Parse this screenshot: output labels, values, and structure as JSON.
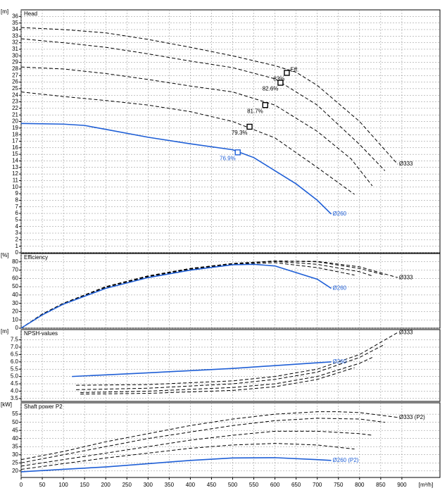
{
  "chart_data": [
    {
      "type": "line",
      "title": "Head",
      "y_unit": "[m]",
      "xlim": [
        0,
        990
      ],
      "xticks": [
        0,
        50,
        100,
        150,
        200,
        250,
        300,
        350,
        400,
        450,
        500,
        550,
        600,
        650,
        700,
        750,
        800,
        850,
        900
      ],
      "ylim": [
        0,
        37
      ],
      "yticks": [
        0,
        1,
        2,
        3,
        4,
        5,
        6,
        7,
        8,
        9,
        10,
        11,
        12,
        13,
        14,
        15,
        16,
        17,
        18,
        19,
        20,
        21,
        22,
        23,
        24,
        25,
        26,
        27,
        28,
        29,
        30,
        31,
        32,
        33,
        34,
        35,
        36
      ],
      "grid": true,
      "series": [
        {
          "label": "Ø333",
          "color": "#000000",
          "dashed": true,
          "x": [
            0,
            100,
            200,
            300,
            400,
            500,
            600,
            650,
            700,
            800,
            890
          ],
          "values": [
            34.3,
            34,
            33.5,
            32.5,
            31.3,
            30,
            28.5,
            27.5,
            25.5,
            20,
            13.5
          ]
        },
        {
          "color": "#000000",
          "dashed": true,
          "x": [
            0,
            100,
            200,
            300,
            400,
            500,
            600,
            700,
            800,
            860
          ],
          "values": [
            32.6,
            32,
            31.3,
            30.3,
            29.2,
            28.2,
            26.5,
            22.5,
            16.5,
            12.5
          ]
        },
        {
          "color": "#000000",
          "dashed": true,
          "x": [
            0,
            100,
            200,
            300,
            400,
            500,
            600,
            700,
            780,
            830
          ],
          "values": [
            28.3,
            28,
            27.3,
            26.4,
            25.4,
            24.5,
            22.5,
            18.5,
            14.3,
            10.2
          ]
        },
        {
          "color": "#000000",
          "dashed": true,
          "x": [
            0,
            100,
            200,
            300,
            400,
            500,
            600,
            700,
            788
          ],
          "values": [
            24.5,
            23.8,
            23.2,
            22.5,
            21.5,
            20,
            17.5,
            13,
            8.9
          ]
        },
        {
          "label": "Ø260",
          "color": "#1f5fd6",
          "dashed": false,
          "x": [
            0,
            100,
            150,
            200,
            300,
            400,
            500,
            550,
            600,
            650,
            700,
            733
          ],
          "values": [
            19.7,
            19.6,
            19.4,
            18.8,
            17.6,
            16.6,
            15.7,
            14.5,
            12.5,
            10.5,
            8,
            5.9
          ]
        }
      ],
      "points": [
        {
          "x": 628,
          "y": 27.4,
          "label": "83%",
          "note": "Eff.",
          "color": "#000000"
        },
        {
          "x": 613,
          "y": 25.9,
          "label": "82.6%",
          "color": "#000000"
        },
        {
          "x": 577,
          "y": 22.5,
          "label": "81.7%",
          "color": "#000000"
        },
        {
          "x": 540,
          "y": 19.2,
          "label": "79.3%",
          "color": "#000000"
        },
        {
          "x": 512,
          "y": 15.3,
          "label": "76.9%",
          "color": "#1f5fd6"
        }
      ]
    },
    {
      "type": "line",
      "title": "Efficiency",
      "y_unit": "[%]",
      "xlim": [
        0,
        990
      ],
      "xticks": [
        0,
        50,
        100,
        150,
        200,
        250,
        300,
        350,
        400,
        450,
        500,
        550,
        600,
        650,
        700,
        750,
        800,
        850,
        900
      ],
      "ylim": [
        0,
        90
      ],
      "yticks": [
        0,
        10,
        20,
        30,
        40,
        50,
        60,
        70,
        80
      ],
      "grid": true,
      "series": [
        {
          "label": "Ø333",
          "color": "#000000",
          "dashed": true,
          "x": [
            0,
            50,
            100,
            200,
            300,
            400,
            500,
            600,
            700,
            800,
            890
          ],
          "values": [
            0,
            17,
            30,
            50,
            63,
            72,
            78,
            81,
            80.5,
            74,
            61
          ]
        },
        {
          "color": "#000000",
          "dashed": true,
          "x": [
            0,
            50,
            100,
            200,
            300,
            400,
            500,
            600,
            700,
            800,
            860
          ],
          "values": [
            0,
            17,
            30,
            50,
            63,
            72,
            78,
            81,
            80,
            72,
            64
          ]
        },
        {
          "color": "#000000",
          "dashed": true,
          "x": [
            0,
            50,
            100,
            200,
            300,
            400,
            500,
            600,
            700,
            800,
            830
          ],
          "values": [
            0,
            17,
            30,
            50,
            62.5,
            71.5,
            77.5,
            80.5,
            77,
            68,
            63
          ]
        },
        {
          "color": "#000000",
          "dashed": true,
          "x": [
            0,
            50,
            100,
            200,
            300,
            400,
            500,
            600,
            700,
            788
          ],
          "values": [
            0,
            16.5,
            29.5,
            49,
            62,
            71,
            77,
            79,
            73,
            64
          ]
        },
        {
          "label": "Ø260",
          "color": "#1f5fd6",
          "dashed": false,
          "x": [
            0,
            50,
            100,
            200,
            300,
            400,
            500,
            550,
            600,
            700,
            733
          ],
          "values": [
            0,
            16,
            29,
            48,
            61,
            70,
            76.5,
            77,
            75,
            59,
            48
          ]
        }
      ]
    },
    {
      "type": "line",
      "title": "NPSH-values",
      "y_unit": "[m]",
      "xlim": [
        0,
        990
      ],
      "xticks": [
        0,
        50,
        100,
        150,
        200,
        250,
        300,
        350,
        400,
        450,
        500,
        550,
        600,
        650,
        700,
        750,
        800,
        850,
        900
      ],
      "ylim": [
        3.3,
        8.2
      ],
      "yticks": [
        3.5,
        {
          "value": 4,
          "label": "4.0"
        },
        4.5,
        {
          "value": 5,
          "label": "5.0"
        },
        5.5,
        {
          "value": 6,
          "label": "6.0"
        },
        6.5,
        {
          "value": 7,
          "label": "7.0"
        },
        7.5
      ],
      "grid": true,
      "series": [
        {
          "label": "Ø333",
          "color": "#000000",
          "dashed": true,
          "x": [
            130,
            300,
            500,
            600,
            700,
            800,
            890
          ],
          "values": [
            4.4,
            4.45,
            4.7,
            5,
            5.5,
            6.5,
            8
          ]
        },
        {
          "color": "#000000",
          "dashed": true,
          "x": [
            130,
            300,
            500,
            600,
            700,
            800,
            860
          ],
          "values": [
            4.1,
            4.2,
            4.5,
            4.8,
            5.3,
            6.3,
            7.2
          ]
        },
        {
          "color": "#000000",
          "dashed": true,
          "x": [
            140,
            300,
            500,
            600,
            700,
            800,
            830
          ],
          "values": [
            3.9,
            4,
            4.25,
            4.5,
            5,
            5.9,
            6.3
          ]
        },
        {
          "color": "#000000",
          "dashed": true,
          "x": [
            140,
            300,
            500,
            600,
            700,
            788
          ],
          "values": [
            3.8,
            3.85,
            4.05,
            4.3,
            4.8,
            5.6
          ]
        },
        {
          "label": "Ø260",
          "color": "#1f5fd6",
          "dashed": false,
          "x": [
            120,
            300,
            500,
            733
          ],
          "values": [
            5,
            5.25,
            5.55,
            6
          ]
        }
      ]
    },
    {
      "type": "line",
      "title": "Shaft power P2",
      "y_unit": "[kW]",
      "x_unit": "[m³/h]",
      "xlim": [
        0,
        990
      ],
      "xticks": [
        0,
        50,
        100,
        150,
        200,
        250,
        300,
        350,
        400,
        450,
        500,
        550,
        600,
        650,
        700,
        750,
        800,
        850,
        900
      ],
      "ylim": [
        16,
        62
      ],
      "yticks": [
        20,
        25,
        30,
        35,
        40,
        45,
        50,
        55
      ],
      "grid": true,
      "series": [
        {
          "label": "Ø333 (P2)",
          "color": "#000000",
          "dashed": true,
          "x": [
            0,
            100,
            200,
            300,
            400,
            500,
            600,
            700,
            750,
            800,
            890
          ],
          "values": [
            27,
            32,
            38,
            43,
            48,
            52,
            55,
            56.5,
            56.5,
            56,
            53
          ]
        },
        {
          "color": "#000000",
          "dashed": true,
          "x": [
            0,
            100,
            200,
            300,
            400,
            500,
            600,
            700,
            800,
            860
          ],
          "values": [
            25,
            30,
            35,
            40,
            44,
            48,
            51,
            52.5,
            52,
            50
          ]
        },
        {
          "color": "#000000",
          "dashed": true,
          "x": [
            0,
            100,
            200,
            300,
            400,
            500,
            600,
            700,
            800,
            830
          ],
          "values": [
            23,
            27,
            31,
            35,
            39,
            42,
            44.5,
            44.5,
            43,
            42
          ]
        },
        {
          "color": "#000000",
          "dashed": true,
          "x": [
            0,
            100,
            200,
            300,
            400,
            500,
            600,
            700,
            788
          ],
          "values": [
            21,
            24.5,
            28,
            31,
            34,
            36,
            37,
            36,
            33.5
          ]
        },
        {
          "label": "Ø260 (P2)",
          "color": "#1f5fd6",
          "dashed": false,
          "x": [
            0,
            100,
            200,
            300,
            400,
            500,
            600,
            700,
            733
          ],
          "values": [
            19.5,
            21,
            22.5,
            24.5,
            26.5,
            28,
            28.2,
            27,
            26.5
          ]
        }
      ]
    }
  ]
}
